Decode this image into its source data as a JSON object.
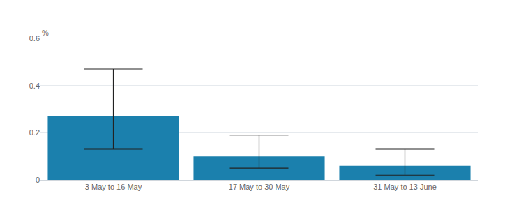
{
  "chart_data": {
    "type": "bar",
    "y_label": "%",
    "categories": [
      "3 May to 16 May",
      "17 May to 30 May",
      "31 May to 13 June"
    ],
    "values": [
      0.27,
      0.1,
      0.06
    ],
    "ci_lower": [
      0.13,
      0.05,
      0.02
    ],
    "ci_upper": [
      0.47,
      0.19,
      0.13
    ],
    "color": "#1b80ad",
    "ylim": [
      0,
      0.6
    ],
    "yticks": [
      0,
      0.2,
      0.4,
      0.6
    ],
    "grid": true
  }
}
